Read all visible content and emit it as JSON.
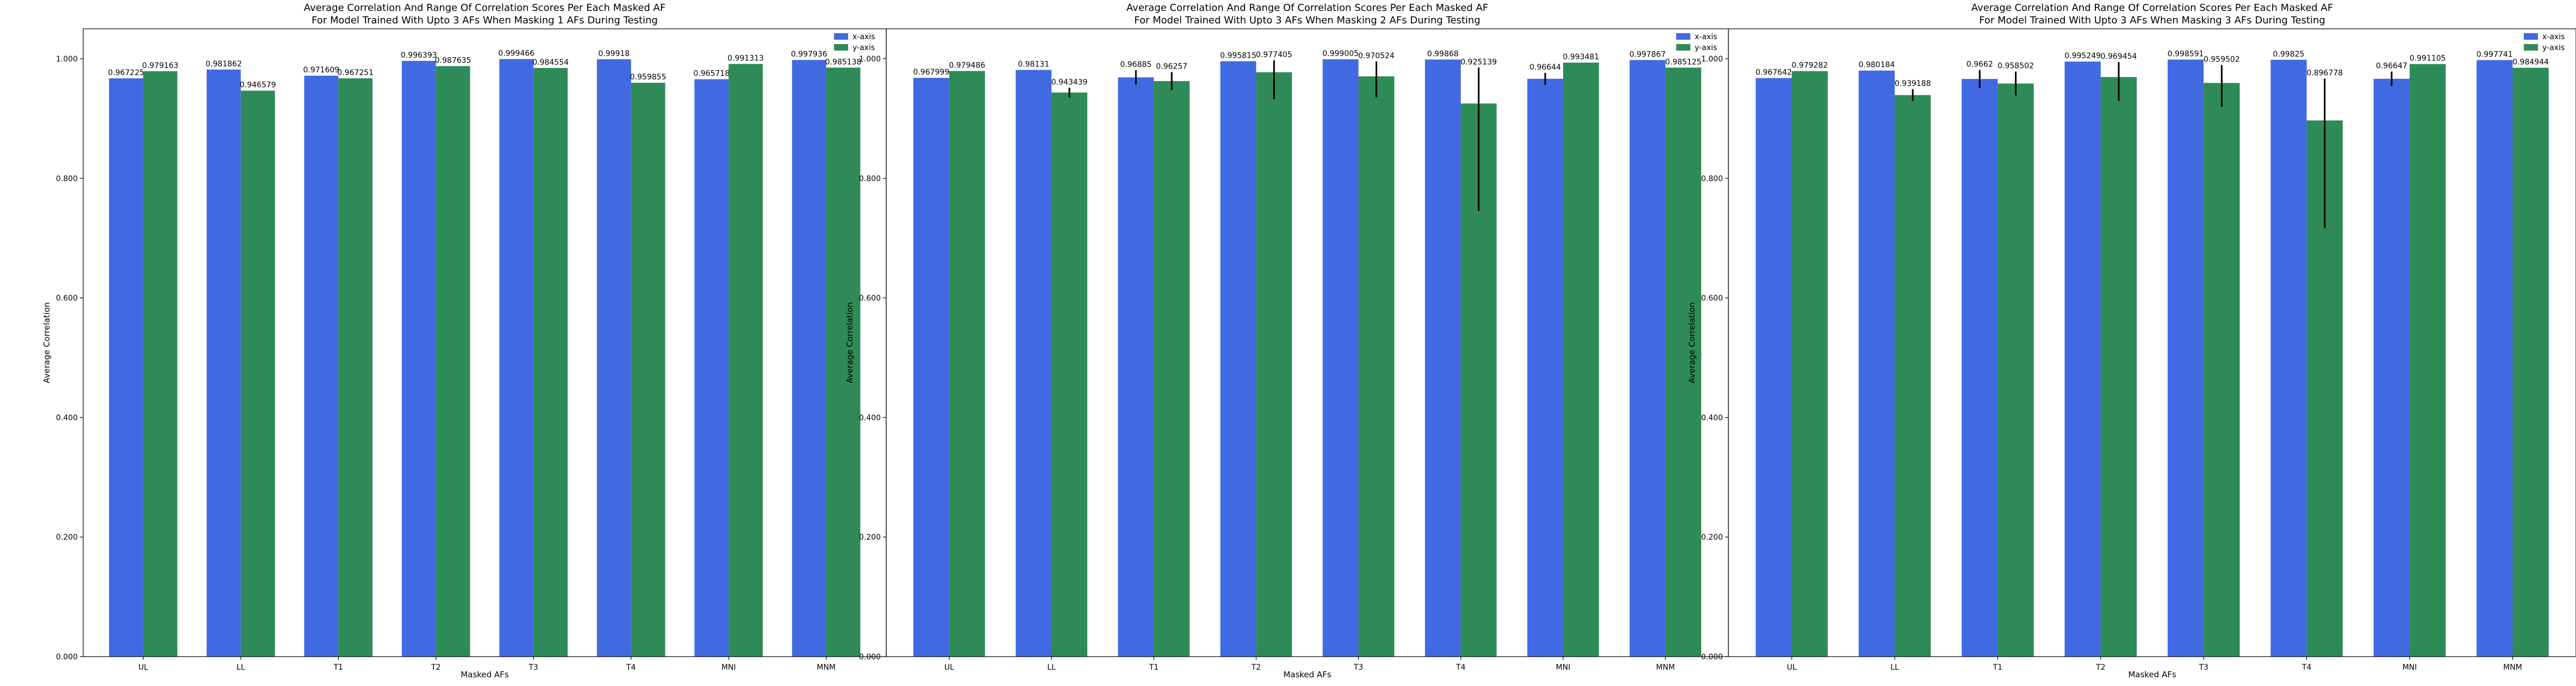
{
  "chart_data": [
    {
      "type": "bar",
      "title": "Average Correlation And Range Of Correlation Scores Per Each Masked AF",
      "subtitle": "For Model Trained With Upto 3 AFs When Masking 1 AFs During Testing",
      "xlabel": "Masked AFs",
      "ylabel": "Average Correlation",
      "ylim": [
        0,
        1.05
      ],
      "yticks": [
        "0.000",
        "0.200",
        "0.400",
        "0.600",
        "0.800",
        "1.000"
      ],
      "categories": [
        "UL",
        "LL",
        "T1",
        "T2",
        "T3",
        "T4",
        "MNI",
        "MNM"
      ],
      "legend_position": "top-right",
      "series": [
        {
          "name": "x-axis",
          "color": "#4169E1",
          "values": [
            0.967225,
            0.981862,
            0.971609,
            0.996393,
            0.999466,
            0.99918,
            0.965718,
            0.997936
          ],
          "labels": [
            "0.967225",
            "0.981862",
            "0.971609",
            "0.996393",
            "0.999466",
            "0.99918",
            "0.965718",
            "0.997936"
          ],
          "err_low": [
            0,
            0,
            0,
            0,
            0,
            0,
            0,
            0
          ],
          "err_high": [
            0,
            0,
            0,
            0,
            0,
            0,
            0,
            0
          ]
        },
        {
          "name": "y-axis",
          "color": "#2E8B57",
          "values": [
            0.979163,
            0.946579,
            0.967251,
            0.987635,
            0.984554,
            0.959855,
            0.991313,
            0.985138
          ],
          "labels": [
            "0.979163",
            "0.946579",
            "0.967251",
            "0.987635",
            "0.984554",
            "0.959855",
            "0.991313",
            "0.985138"
          ],
          "err_low": [
            0,
            0,
            0,
            0,
            0,
            0,
            0,
            0
          ],
          "err_high": [
            0,
            0,
            0,
            0,
            0,
            0,
            0,
            0
          ]
        }
      ]
    },
    {
      "type": "bar",
      "title": "Average Correlation And Range Of Correlation Scores Per Each Masked AF",
      "subtitle": "For Model Trained With Upto 3 AFs When Masking 2 AFs During Testing",
      "xlabel": "Masked AFs",
      "ylabel": "Average Correlation",
      "ylim": [
        0,
        1.05
      ],
      "yticks": [
        "0.000",
        "0.200",
        "0.400",
        "0.600",
        "0.800",
        "1.000"
      ],
      "categories": [
        "UL",
        "LL",
        "T1",
        "T2",
        "T3",
        "T4",
        "MNI",
        "MNM"
      ],
      "legend_position": "top-right",
      "series": [
        {
          "name": "x-axis",
          "color": "#4169E1",
          "values": [
            0.967999,
            0.98131,
            0.96885,
            0.995815,
            0.999005,
            0.99868,
            0.96644,
            0.997867
          ],
          "labels": [
            "0.967999",
            "0.98131",
            "0.96885",
            "0.995815",
            "0.999005",
            "0.99868",
            "0.96644",
            "0.997867"
          ],
          "err_low": [
            0,
            0,
            0.012,
            0,
            0,
            0,
            0.01,
            0
          ],
          "err_high": [
            0,
            0,
            0.012,
            0,
            0,
            0,
            0.01,
            0
          ]
        },
        {
          "name": "y-axis",
          "color": "#2E8B57",
          "values": [
            0.979486,
            0.943439,
            0.96257,
            0.977405,
            0.970524,
            0.925139,
            0.993481,
            0.985125
          ],
          "labels": [
            "0.979486",
            "0.943439",
            "0.96257",
            "0.977405",
            "0.970524",
            "0.925139",
            "0.993481",
            "0.985125"
          ],
          "err_low": [
            0,
            0.008,
            0.015,
            0.045,
            0.035,
            0.18,
            0,
            0
          ],
          "err_high": [
            0,
            0.008,
            0.015,
            0.02,
            0.025,
            0.06,
            0,
            0
          ]
        }
      ]
    },
    {
      "type": "bar",
      "title": "Average Correlation And Range Of Correlation Scores Per Each Masked AF",
      "subtitle": "For Model Trained With Upto 3 AFs When Masking 3 AFs During Testing",
      "xlabel": "Masked AFs",
      "ylabel": "Average Correlation",
      "ylim": [
        0,
        1.05
      ],
      "yticks": [
        "0.000",
        "0.200",
        "0.400",
        "0.600",
        "0.800",
        "1.000"
      ],
      "categories": [
        "UL",
        "LL",
        "T1",
        "T2",
        "T3",
        "T4",
        "MNI",
        "MNM"
      ],
      "legend_position": "top-right",
      "series": [
        {
          "name": "x-axis",
          "color": "#4169E1",
          "values": [
            0.967642,
            0.980184,
            0.9662,
            0.995249,
            0.998591,
            0.99825,
            0.96647,
            0.997741
          ],
          "labels": [
            "0.967642",
            "0.980184",
            "0.9662",
            "0.995249",
            "0.998591",
            "0.99825",
            "0.96647",
            "0.997741"
          ],
          "err_low": [
            0,
            0,
            0.015,
            0,
            0,
            0,
            0.012,
            0
          ],
          "err_high": [
            0,
            0,
            0.015,
            0,
            0,
            0,
            0.012,
            0
          ]
        },
        {
          "name": "y-axis",
          "color": "#2E8B57",
          "values": [
            0.979282,
            0.939188,
            0.958502,
            0.969454,
            0.959502,
            0.896778,
            0.991105,
            0.984944
          ],
          "labels": [
            "0.979282",
            "0.939188",
            "0.958502",
            "0.969454",
            "0.959502",
            "0.896778",
            "0.991105",
            "0.984944"
          ],
          "err_low": [
            0,
            0.01,
            0.02,
            0.04,
            0.04,
            0.18,
            0,
            0
          ],
          "err_high": [
            0,
            0.01,
            0.02,
            0.025,
            0.03,
            0.07,
            0,
            0
          ]
        }
      ]
    }
  ]
}
